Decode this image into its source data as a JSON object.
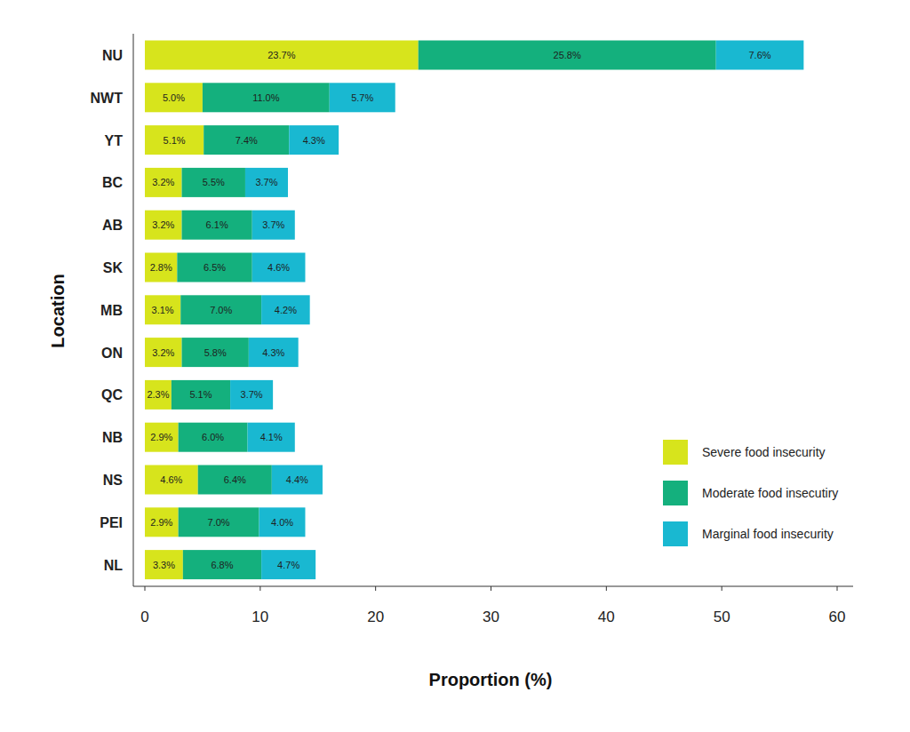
{
  "chart_data": {
    "type": "bar",
    "orientation": "horizontal",
    "stacked": true,
    "data_labels": true,
    "grid": false,
    "legend": "lower right",
    "x_label": "Proportion (%)",
    "y_label": "Location",
    "categories": [
      "NU",
      "NWT",
      "YT",
      "BC",
      "AB",
      "SK",
      "MB",
      "ON",
      "QC",
      "NB",
      "NS",
      "PEI",
      "NL"
    ],
    "xlim": [
      0,
      60
    ],
    "xticks": [
      0,
      10,
      20,
      30,
      40,
      50,
      60
    ],
    "series": [
      {
        "name": "Severe food insecurity",
        "color": "#d7e41c",
        "values": [
          23.7,
          5.0,
          5.1,
          3.2,
          3.2,
          2.8,
          3.1,
          3.2,
          2.3,
          2.9,
          4.6,
          2.9,
          3.3
        ],
        "value_labels": [
          "23.7%",
          "5.0%",
          "5.1%",
          "3.2%",
          "3.2%",
          "2.8%",
          "3.1%",
          "3.2%",
          "2.3%",
          "2.9%",
          "4.6%",
          "2.9%",
          "3.3%"
        ]
      },
      {
        "name": "Moderate food insecutiry",
        "color": "#14b07d",
        "values": [
          25.8,
          11.0,
          7.4,
          5.5,
          6.1,
          6.5,
          7.0,
          5.8,
          5.1,
          6.0,
          6.4,
          7.0,
          6.8
        ],
        "value_labels": [
          "25.8%",
          "11.0%",
          "7.4%",
          "5.5%",
          "6.1%",
          "6.5%",
          "7.0%",
          "5.8%",
          "5.1%",
          "6.0%",
          "6.4%",
          "7.0%",
          "6.8%"
        ]
      },
      {
        "name": "Marginal food insecurity",
        "color": "#19b8d1",
        "values": [
          7.6,
          5.7,
          4.3,
          3.7,
          3.7,
          4.6,
          4.2,
          4.3,
          3.7,
          4.1,
          4.4,
          4.0,
          4.7
        ],
        "value_labels": [
          "7.6%",
          "5.7%",
          "4.3%",
          "3.7%",
          "3.7%",
          "4.6%",
          "4.2%",
          "4.3%",
          "3.7%",
          "4.1%",
          "4.4%",
          "4.0%",
          "4.7%"
        ]
      }
    ]
  }
}
